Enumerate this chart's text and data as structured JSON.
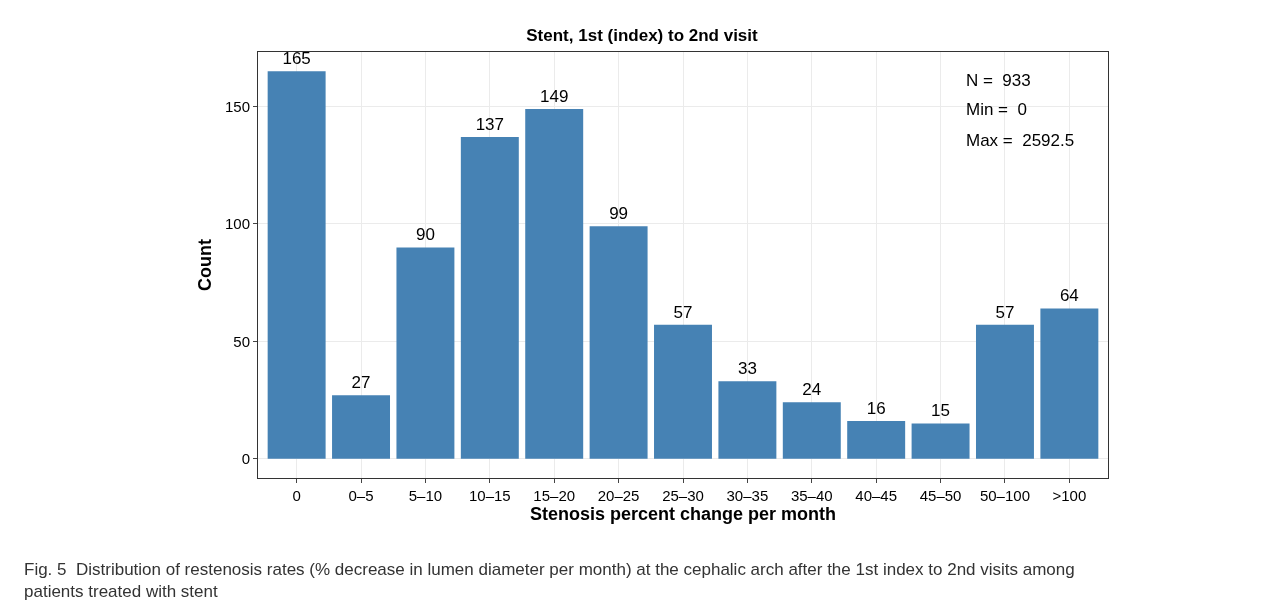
{
  "chart_data": {
    "type": "bar",
    "title": "Stent, 1st (index) to 2nd visit",
    "xlabel": "Stenosis percent change per month",
    "ylabel": "Count",
    "categories": [
      "0",
      "0–5",
      "5–10",
      "10–15",
      "15–20",
      "20–25",
      "25–30",
      "30–35",
      "35–40",
      "40–45",
      "45–50",
      "50–100",
      ">100"
    ],
    "values": [
      165,
      27,
      90,
      137,
      149,
      99,
      57,
      33,
      24,
      16,
      15,
      57,
      64
    ],
    "color": "#4682b4",
    "data_labels": true,
    "ylim": [
      -8.25,
      173.25
    ],
    "yticks": [
      0,
      50,
      100,
      150
    ],
    "grid": true,
    "annotations": [
      "N =  933",
      "Min =  0",
      "Max =  2592.5",
      "Fig. 5  Distribution of restenosis rates (% decrease in lumen diameter per month) at the cephalic arch after the 1st index to 2nd visits among patients treated with stent"
    ]
  }
}
